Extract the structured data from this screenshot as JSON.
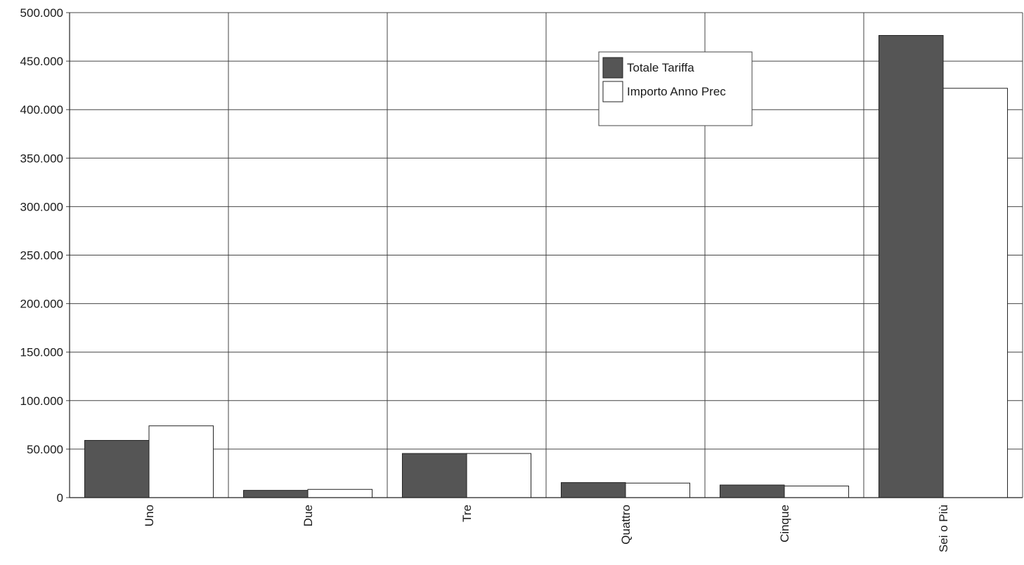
{
  "chart_data": {
    "type": "bar",
    "title": "",
    "xlabel": "",
    "ylabel": "",
    "categories": [
      "Uno",
      "Due",
      "Tre",
      "Quattro",
      "Cinque",
      "Sei o Più"
    ],
    "series": [
      {
        "name": "Totale Tariffa",
        "values": [
          59000,
          7500,
          45500,
          15500,
          13000,
          476500
        ],
        "color": "#555555"
      },
      {
        "name": "Importo Anno Prec",
        "values": [
          74000,
          8500,
          45500,
          15000,
          12000,
          422000
        ],
        "color": "#ffffff"
      }
    ],
    "ylim": [
      0,
      500000
    ],
    "yticks": [
      0,
      50000,
      100000,
      150000,
      200000,
      250000,
      300000,
      350000,
      400000,
      450000,
      500000
    ],
    "ytick_labels": [
      "0",
      "50.000",
      "100.000",
      "150.000",
      "200.000",
      "250.000",
      "300.000",
      "350.000",
      "400.000",
      "450.000",
      "500.000"
    ],
    "grid": true,
    "legend_position": "top-right"
  }
}
